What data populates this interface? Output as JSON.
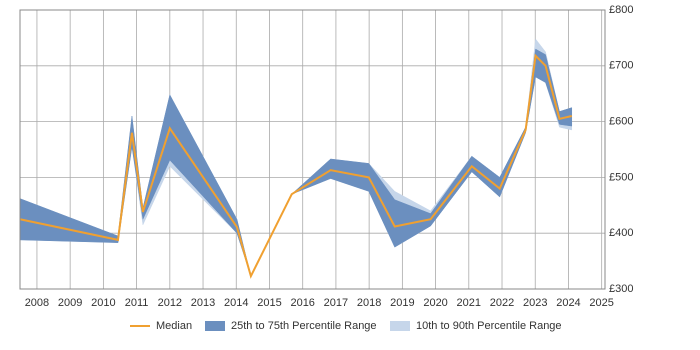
{
  "chart_data": {
    "type": "line-band",
    "x": [
      2007.49,
      2010.44,
      2010.86,
      2011.19,
      2012.0,
      2014.02,
      2014.44,
      2015.67,
      2016.84,
      2017.99,
      2018.77,
      2019.85,
      2021.09,
      2021.93,
      2022.71,
      2023.01,
      2023.31,
      2023.73,
      2024.1
    ],
    "series": [
      {
        "name": "10th to 90th Percentile Range",
        "color": "#c6d6ea",
        "low": [
          388,
          383,
          555,
          415,
          520,
          400,
          323,
          470,
          498,
          475,
          375,
          413,
          510,
          465,
          580,
          680,
          670,
          590,
          585
        ],
        "high": [
          462,
          395,
          610,
          445,
          648,
          425,
          323,
          470,
          533,
          525,
          475,
          440,
          538,
          500,
          590,
          748,
          725,
          618,
          625
        ]
      },
      {
        "name": "25th to 75th Percentile Range",
        "color": "#6b8fbf",
        "low": [
          388,
          383,
          555,
          425,
          531,
          400,
          323,
          470,
          498,
          475,
          375,
          413,
          510,
          465,
          580,
          680,
          670,
          595,
          592
        ],
        "high": [
          462,
          395,
          610,
          445,
          648,
          425,
          323,
          470,
          533,
          525,
          460,
          435,
          538,
          500,
          590,
          730,
          720,
          618,
          625
        ]
      },
      {
        "name": "Median",
        "color": "#f0a030",
        "values": [
          425,
          388,
          580,
          438,
          588,
          411,
          323,
          470,
          513,
          500,
          412,
          425,
          520,
          480,
          585,
          718,
          700,
          605,
          610
        ]
      }
    ],
    "xlim": [
      2007.49,
      2025.1
    ],
    "xticks": [
      2008,
      2009,
      2010,
      2011,
      2012,
      2013,
      2014,
      2015,
      2016,
      2017,
      2018,
      2019,
      2020,
      2021,
      2022,
      2023,
      2024,
      2025
    ],
    "ylim": [
      300,
      800
    ],
    "yticks": [
      {
        "value": 300,
        "label": "£300"
      },
      {
        "value": 400,
        "label": "£400"
      },
      {
        "value": 500,
        "label": "£500"
      },
      {
        "value": 600,
        "label": "£600"
      },
      {
        "value": 700,
        "label": "£700"
      },
      {
        "value": 800,
        "label": "£800"
      }
    ],
    "grid": true,
    "legend": "bottom"
  }
}
